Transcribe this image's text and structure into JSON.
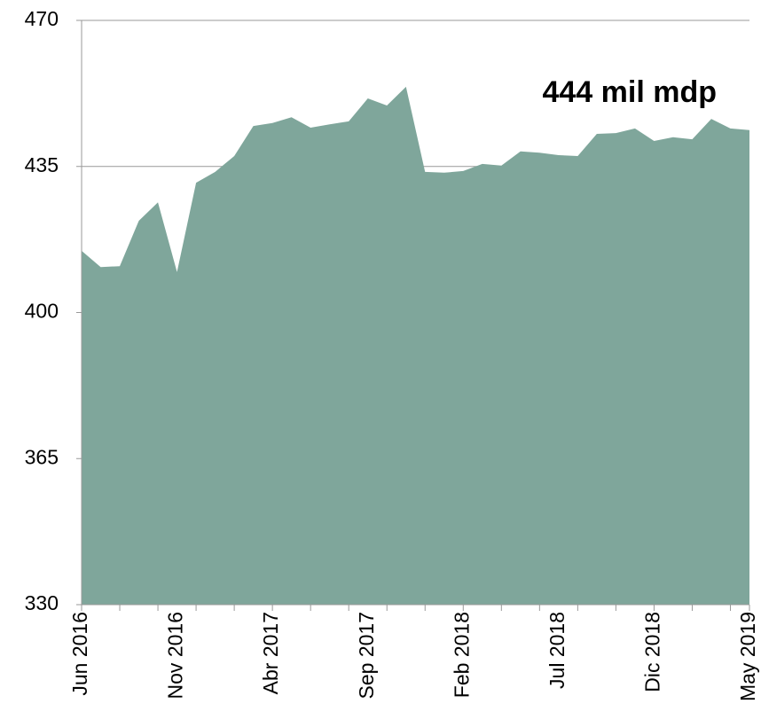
{
  "chart_data": {
    "type": "area",
    "annotation": "444 mil mdp",
    "categories": [
      "Jun 2016",
      null,
      null,
      null,
      null,
      "Nov 2016",
      null,
      null,
      null,
      null,
      "Abr 2017",
      null,
      null,
      null,
      null,
      "Sep 2017",
      null,
      null,
      null,
      null,
      "Feb 2018",
      null,
      null,
      null,
      null,
      "Jul 2018",
      null,
      null,
      null,
      null,
      "Dic 2018",
      null,
      null,
      null,
      null,
      "May 2019"
    ],
    "values": [
      414.8,
      410.9,
      411.1,
      422.0,
      426.4,
      409.7,
      431.1,
      433.7,
      437.5,
      444.7,
      445.4,
      446.8,
      444.3,
      445.1,
      445.8,
      451.3,
      449.6,
      454.1,
      433.7,
      433.5,
      433.9,
      435.6,
      435.2,
      438.6,
      438.3,
      437.7,
      437.5,
      442.8,
      443.0,
      444.1,
      441.1,
      442.0,
      441.5,
      446.4,
      444.1,
      443.7
    ],
    "color": "#7fa69b",
    "ylim": [
      330,
      470
    ],
    "yticks": [
      330,
      365,
      400,
      435,
      470
    ],
    "grid": true
  }
}
